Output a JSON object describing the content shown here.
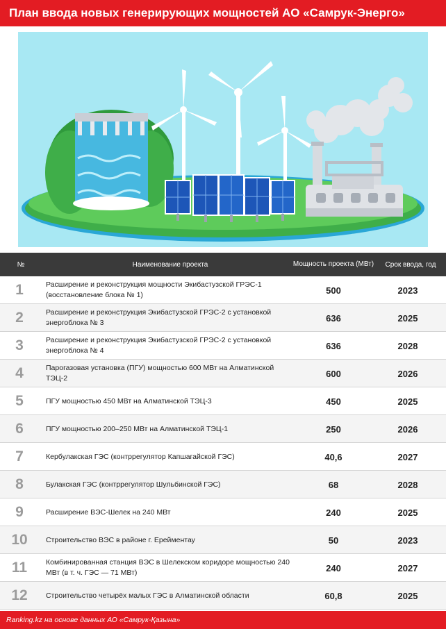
{
  "title": "План ввода новых генерирующих мощностей АО «Самрук-Энерго»",
  "illustration_icons": [
    "hydro-dam-icon",
    "wind-turbine-icon",
    "solar-panel-icon",
    "power-plant-icon"
  ],
  "colors": {
    "accent": "#e31c23",
    "header_bg": "#3a3a3a",
    "sky": "#a8e8f3",
    "grass": "#3fae49",
    "water": "#2aa7d6",
    "solar": "#1d56b8"
  },
  "table": {
    "headers": {
      "num": "№",
      "name": "Наименование проекта",
      "power": "Мощность проекта (МВт)",
      "date": "Срок ввода, год"
    },
    "rows": [
      {
        "num": "1",
        "name": "Расширение и реконструкция мощности Экибастузской ГРЭС-1 (восстановление блока № 1)",
        "power": "500",
        "date": "2023"
      },
      {
        "num": "2",
        "name": "Расширение и реконструкция Экибастузской ГРЭС-2 с установкой энергоблока № 3",
        "power": "636",
        "date": "2025"
      },
      {
        "num": "3",
        "name": "Расширение и реконструкция Экибастузской ГРЭС-2 с установкой энергоблока № 4",
        "power": "636",
        "date": "2028"
      },
      {
        "num": "4",
        "name": "Парогазовая установка (ПГУ) мощностью 600 МВт на Алматинской ТЭЦ-2",
        "power": "600",
        "date": "2026"
      },
      {
        "num": "5",
        "name": "ПГУ мощностью 450 МВт на Алматинской ТЭЦ-3",
        "power": "450",
        "date": "2025"
      },
      {
        "num": "6",
        "name": "ПГУ мощностью 200–250 МВт на Алматинской ТЭЦ-1",
        "power": "250",
        "date": "2026"
      },
      {
        "num": "7",
        "name": "Кербулакская ГЭС (контррегулятор Капшагайской ГЭС)",
        "power": "40,6",
        "date": "2027"
      },
      {
        "num": "8",
        "name": "Булакская ГЭС (контррегулятор Шульбинской ГЭС)",
        "power": "68",
        "date": "2028"
      },
      {
        "num": "9",
        "name": "Расширение ВЭС-Шелек на 240 МВт",
        "power": "240",
        "date": "2025"
      },
      {
        "num": "10",
        "name": "Строительство ВЭС в районе г. Ерейментау",
        "power": "50",
        "date": "2023"
      },
      {
        "num": "11",
        "name": "Комбинированная станция ВЭС в Шелекском коридоре мощностью 240 МВт (в т. ч. ГЭС — 71 МВт)",
        "power": "240",
        "date": "2027"
      },
      {
        "num": "12",
        "name": "Строительство четырёх малых ГЭС в Алматинской области",
        "power": "60,8",
        "date": "2025"
      }
    ]
  },
  "footer": "Ranking.kz на основе данных АО «Самрук-Қазына»"
}
